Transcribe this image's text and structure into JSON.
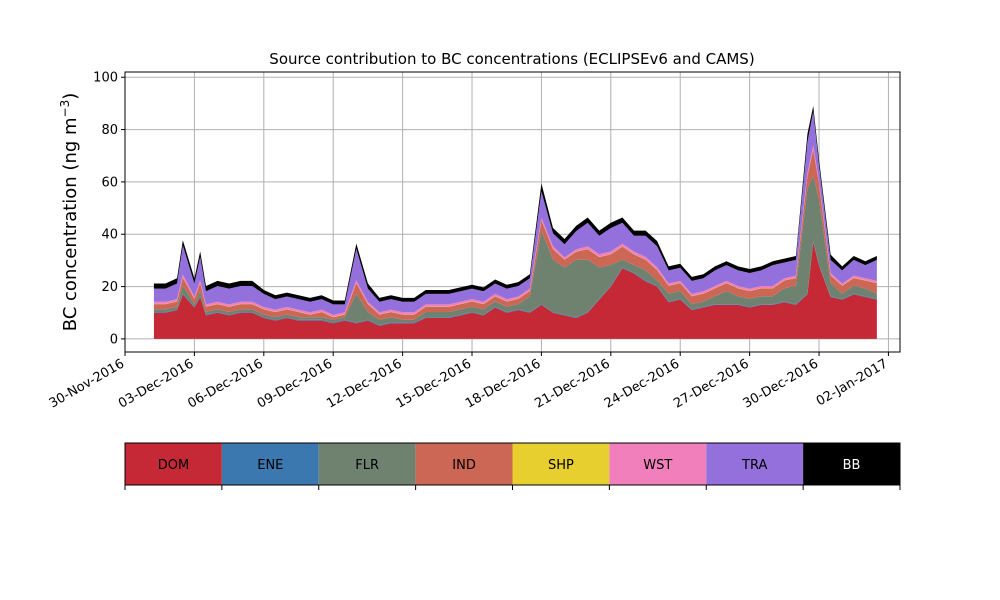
{
  "chart_data": {
    "type": "area",
    "title": "Source contribution to BC concentrations (ECLIPSEv6 and CAMS)",
    "xlabel": "",
    "ylabel": "BC concentration (ng m",
    "ylabel_unit_exponent": "−3",
    "ylabel_close": ")",
    "stacked": true,
    "grid": true,
    "ylim": [
      -5,
      102
    ],
    "yticks": [
      0,
      20,
      40,
      60,
      80,
      100
    ],
    "xlim": [
      "2016-11-30T00:00",
      "2017-01-02T12:00"
    ],
    "xticks": [
      "2016-11-30",
      "2016-12-03",
      "2016-12-06",
      "2016-12-09",
      "2016-12-12",
      "2016-12-15",
      "2016-12-18",
      "2016-12-21",
      "2016-12-24",
      "2016-12-27",
      "2016-12-30",
      "2017-01-02"
    ],
    "xtick_labels": [
      "30-Nov-2016",
      "03-Dec-2016",
      "06-Dec-2016",
      "09-Dec-2016",
      "12-Dec-2016",
      "15-Dec-2016",
      "18-Dec-2016",
      "21-Dec-2016",
      "24-Dec-2016",
      "27-Dec-2016",
      "30-Dec-2016",
      "02-Jan-2017"
    ],
    "x": [
      "2016-12-01T06:00",
      "2016-12-01T18:00",
      "2016-12-02T06:00",
      "2016-12-02T12:00",
      "2016-12-03T00:00",
      "2016-12-03T06:00",
      "2016-12-03T12:00",
      "2016-12-04T00:00",
      "2016-12-04T12:00",
      "2016-12-05T00:00",
      "2016-12-05T12:00",
      "2016-12-06T00:00",
      "2016-12-06T12:00",
      "2016-12-07T00:00",
      "2016-12-07T12:00",
      "2016-12-08T00:00",
      "2016-12-08T12:00",
      "2016-12-09T00:00",
      "2016-12-09T12:00",
      "2016-12-10T00:00",
      "2016-12-10T12:00",
      "2016-12-11T00:00",
      "2016-12-11T12:00",
      "2016-12-12T00:00",
      "2016-12-12T12:00",
      "2016-12-13T00:00",
      "2016-12-13T12:00",
      "2016-12-14T00:00",
      "2016-12-14T12:00",
      "2016-12-15T00:00",
      "2016-12-15T12:00",
      "2016-12-16T00:00",
      "2016-12-16T12:00",
      "2016-12-17T00:00",
      "2016-12-17T12:00",
      "2016-12-18T00:00",
      "2016-12-18T12:00",
      "2016-12-19T00:00",
      "2016-12-19T12:00",
      "2016-12-20T00:00",
      "2016-12-20T12:00",
      "2016-12-21T00:00",
      "2016-12-21T12:00",
      "2016-12-22T00:00",
      "2016-12-22T12:00",
      "2016-12-23T00:00",
      "2016-12-23T12:00",
      "2016-12-24T00:00",
      "2016-12-24T12:00",
      "2016-12-25T00:00",
      "2016-12-25T12:00",
      "2016-12-26T00:00",
      "2016-12-26T12:00",
      "2016-12-27T00:00",
      "2016-12-27T12:00",
      "2016-12-28T00:00",
      "2016-12-28T12:00",
      "2016-12-29T00:00",
      "2016-12-29T12:00",
      "2016-12-29T18:00",
      "2016-12-30T00:00",
      "2016-12-30T12:00",
      "2016-12-31T00:00",
      "2016-12-31T12:00",
      "2017-01-01T00:00",
      "2017-01-01T12:00"
    ],
    "series": [
      {
        "name": "DOM",
        "color": "#c62936",
        "values": [
          10,
          10,
          11,
          17,
          12,
          16,
          9,
          10,
          9,
          10,
          10,
          8,
          7,
          8,
          7,
          7,
          7,
          6,
          7,
          6,
          7,
          5,
          6,
          6,
          6,
          8,
          8,
          8,
          9,
          10,
          9,
          12,
          10,
          11,
          10,
          13,
          10,
          9,
          8,
          10,
          15,
          20,
          27,
          25,
          22,
          20,
          14,
          15,
          11,
          12,
          13,
          13,
          13,
          12,
          13,
          13,
          14,
          13,
          17,
          37,
          28,
          16,
          15,
          17,
          16,
          15
        ]
      },
      {
        "name": "ENE",
        "color": "#3c78b0",
        "values": [
          0.3,
          0.3,
          0.3,
          0.4,
          0.3,
          0.3,
          0.3,
          0.3,
          0.3,
          0.3,
          0.3,
          0.3,
          0.3,
          0.3,
          0.3,
          0.3,
          0.3,
          0.3,
          0.3,
          0.3,
          0.3,
          0.3,
          0.3,
          0.3,
          0.3,
          0.3,
          0.3,
          0.3,
          0.3,
          0.3,
          0.3,
          0.3,
          0.3,
          0.3,
          0.3,
          0.3,
          0.3,
          0.3,
          0.3,
          0.3,
          0.3,
          0.3,
          0.3,
          0.3,
          0.3,
          0.3,
          0.3,
          0.3,
          0.3,
          0.3,
          0.3,
          0.3,
          0.3,
          0.3,
          0.3,
          0.3,
          0.3,
          0.3,
          0.3,
          0.4,
          0.3,
          0.3,
          0.3,
          0.3,
          0.3,
          0.3
        ]
      },
      {
        "name": "FLR",
        "color": "#6f8270",
        "values": [
          1,
          1,
          1,
          3,
          1,
          2,
          1,
          1,
          1,
          1,
          1,
          1,
          1,
          1,
          1,
          1,
          1,
          1,
          1,
          11,
          3,
          2,
          2,
          1,
          1,
          2,
          2,
          2,
          2,
          2,
          2,
          2,
          2,
          2,
          6,
          28,
          20,
          18,
          22,
          20,
          12,
          8,
          3,
          3,
          4,
          2,
          3,
          3,
          2,
          2,
          3,
          5,
          3,
          3,
          3,
          3,
          5,
          7,
          40,
          25,
          25,
          5,
          2,
          3,
          3,
          2
        ]
      },
      {
        "name": "IND",
        "color": "#cc6655",
        "values": [
          2,
          2,
          2,
          3,
          2,
          3,
          2,
          2,
          2,
          2,
          2,
          2,
          2,
          2,
          2,
          1,
          2,
          1,
          1,
          4,
          3,
          2,
          2,
          2,
          2,
          2,
          2,
          2,
          2,
          2,
          2,
          2,
          2,
          2,
          2,
          4,
          4,
          3,
          3,
          4,
          4,
          4,
          5,
          4,
          4,
          4,
          3,
          3,
          3,
          3,
          3,
          3,
          3,
          3,
          3,
          3,
          3,
          3,
          5,
          10,
          6,
          3,
          3,
          3,
          3,
          4
        ]
      },
      {
        "name": "SHP",
        "color": "#e6cf2e",
        "values": [
          0.1,
          0.1,
          0.1,
          0.1,
          0.1,
          0.1,
          0.1,
          0.1,
          0.1,
          0.1,
          0.1,
          0.1,
          0.1,
          0.1,
          0.1,
          0.1,
          0.1,
          0.1,
          0.1,
          0.1,
          0.1,
          0.1,
          0.1,
          0.1,
          0.1,
          0.1,
          0.1,
          0.1,
          0.1,
          0.1,
          0.1,
          0.1,
          0.1,
          0.1,
          0.1,
          0.1,
          0.1,
          0.1,
          0.1,
          0.1,
          0.1,
          0.1,
          0.1,
          0.1,
          0.1,
          0.1,
          0.1,
          0.1,
          0.1,
          0.1,
          0.1,
          0.1,
          0.1,
          0.1,
          0.1,
          0.1,
          0.1,
          0.1,
          0.1,
          0.1,
          0.1,
          0.1,
          0.1,
          0.1,
          0.1,
          0.1
        ]
      },
      {
        "name": "WST",
        "color": "#f07fbb",
        "values": [
          0.8,
          0.8,
          0.8,
          1.2,
          0.8,
          1,
          0.8,
          0.8,
          0.8,
          0.8,
          0.8,
          0.8,
          0.8,
          0.8,
          0.8,
          0.8,
          0.8,
          0.8,
          0.8,
          1,
          0.8,
          0.8,
          0.8,
          0.8,
          0.8,
          0.8,
          0.8,
          0.8,
          0.8,
          0.8,
          0.8,
          0.8,
          0.8,
          0.8,
          0.8,
          1,
          1,
          0.8,
          0.8,
          1,
          1,
          1,
          1,
          1,
          1,
          1,
          0.8,
          0.8,
          0.8,
          0.8,
          0.8,
          0.8,
          0.8,
          0.8,
          0.8,
          0.8,
          0.8,
          0.8,
          1,
          1.5,
          1,
          0.8,
          0.8,
          0.8,
          0.8,
          0.8
        ]
      },
      {
        "name": "TRA",
        "color": "#9370db",
        "values": [
          5,
          5,
          6,
          11,
          5,
          9,
          5,
          6,
          6,
          6,
          6,
          5,
          4,
          4,
          4,
          4,
          4,
          4,
          3,
          12,
          5,
          4,
          4,
          4,
          4,
          4,
          4,
          4,
          4,
          4,
          4,
          4,
          4,
          4,
          4,
          10,
          5,
          5,
          7,
          9,
          7,
          9,
          8,
          6,
          8,
          8,
          5,
          5,
          5,
          5,
          6,
          6,
          6,
          6,
          6,
          8,
          6,
          6,
          12,
          13,
          6,
          5,
          5,
          6,
          5,
          8
        ]
      },
      {
        "name": "BB",
        "color": "#000000",
        "values": [
          2,
          2,
          2,
          2,
          2,
          2,
          2,
          2,
          2,
          2,
          2,
          1.5,
          1.5,
          1.5,
          1.5,
          1.5,
          1.5,
          1.5,
          1.5,
          2,
          2,
          1.5,
          1.5,
          1.5,
          1.5,
          1.5,
          1.5,
          1.5,
          1.5,
          1.5,
          1.5,
          1.5,
          1.5,
          1.5,
          1.5,
          3,
          2,
          2,
          2,
          2,
          2,
          2,
          2,
          2,
          2,
          2,
          1.5,
          1.5,
          1.5,
          1.5,
          1.5,
          1.5,
          1.5,
          1.5,
          1.5,
          1.5,
          1.5,
          1.5,
          3,
          2,
          2,
          2,
          1.5,
          1.5,
          1.5,
          1.5
        ]
      }
    ]
  },
  "legend_bar": {
    "items": [
      {
        "label": "DOM",
        "color": "#c62936",
        "text_color": "#000000"
      },
      {
        "label": "ENE",
        "color": "#3c78b0",
        "text_color": "#000000"
      },
      {
        "label": "FLR",
        "color": "#6f8270",
        "text_color": "#000000"
      },
      {
        "label": "IND",
        "color": "#cc6655",
        "text_color": "#000000"
      },
      {
        "label": "SHP",
        "color": "#e6cf2e",
        "text_color": "#000000"
      },
      {
        "label": "WST",
        "color": "#f07fbb",
        "text_color": "#000000"
      },
      {
        "label": "TRA",
        "color": "#9370db",
        "text_color": "#000000"
      },
      {
        "label": "BB",
        "color": "#000000",
        "text_color": "#ffffff"
      }
    ]
  }
}
